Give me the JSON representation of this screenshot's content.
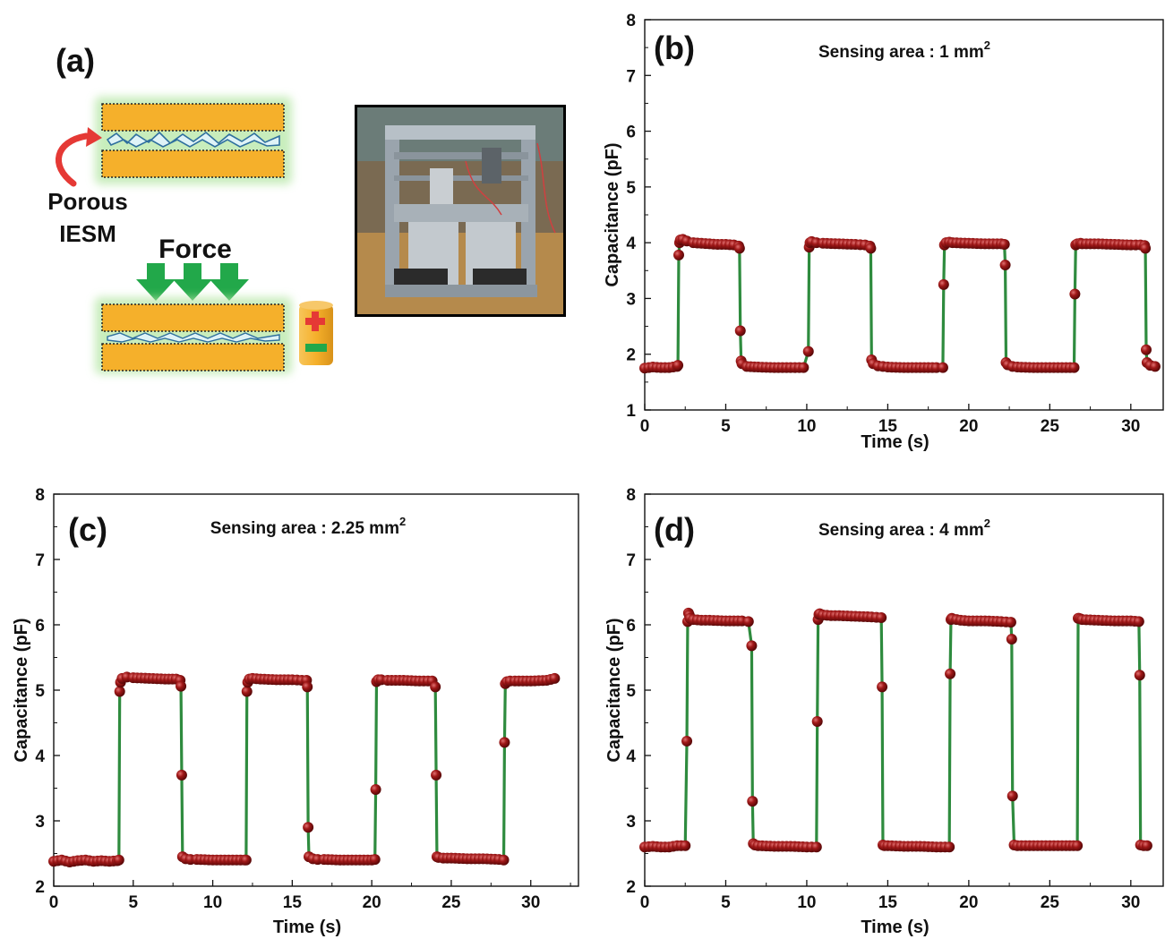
{
  "panel_a": {
    "tag": "(a)",
    "porous_label_line1": "Porous",
    "porous_label_line2": "IESM",
    "force_label": "Force",
    "colors": {
      "electrode": "#f5b02b",
      "arrow_green": "#22a84a",
      "curl_arrow": "#e53935",
      "battery": "#f5b02b",
      "plus": "#e53935",
      "minus": "#22a84a"
    }
  },
  "colors": {
    "marker": "#8b1010",
    "line": "#2e8b3e"
  },
  "chart_data": [
    {
      "type": "line",
      "panel": "(b)",
      "annotation": "Sensing area : 1 mm",
      "annotation_sup": "2",
      "xlabel": "Time (s)",
      "ylabel": "Capacitance (pF)",
      "xlim": [
        0,
        32
      ],
      "ylim": [
        1,
        8
      ],
      "xticks": [
        0,
        5,
        10,
        15,
        20,
        25,
        30
      ],
      "yticks": [
        1,
        2,
        3,
        4,
        5,
        6,
        7,
        8
      ],
      "grid": false,
      "series": [
        {
          "x": [
            0.0,
            0.5,
            1.0,
            1.5,
            2.0,
            2.05,
            2.1,
            2.15,
            2.2,
            2.35,
            2.6,
            3.0,
            3.5,
            4.0,
            4.5,
            5.0,
            5.5,
            5.8,
            5.85,
            5.9,
            5.95,
            6.0,
            6.3,
            7.0,
            8.0,
            9.0,
            9.8,
            10.1,
            10.15,
            10.2,
            10.3,
            10.6,
            11.0,
            12.0,
            13.0,
            13.6,
            13.9,
            13.95,
            14.0,
            14.1,
            14.4,
            15.0,
            16.0,
            17.0,
            18.0,
            18.4,
            18.45,
            18.5,
            18.6,
            18.8,
            19.0,
            20.0,
            21.0,
            22.0,
            22.2,
            22.25,
            22.3,
            22.4,
            22.7,
            23.0,
            24.0,
            25.0,
            26.0,
            26.5,
            26.55,
            26.6,
            26.7,
            26.9,
            27.0,
            28.0,
            29.0,
            30.0,
            30.6,
            30.85,
            30.9,
            30.95,
            31.0,
            31.2,
            31.5
          ],
          "y": [
            1.75,
            1.77,
            1.76,
            1.76,
            1.78,
            1.8,
            3.78,
            4.0,
            4.05,
            4.06,
            4.03,
            4.0,
            3.99,
            3.98,
            3.97,
            3.97,
            3.96,
            3.94,
            3.9,
            2.42,
            1.88,
            1.83,
            1.78,
            1.77,
            1.76,
            1.76,
            1.76,
            2.05,
            3.92,
            4.0,
            4.02,
            4.0,
            3.99,
            3.98,
            3.97,
            3.96,
            3.94,
            3.9,
            1.9,
            1.83,
            1.79,
            1.77,
            1.76,
            1.76,
            1.76,
            1.76,
            3.25,
            3.96,
            4.0,
            4.01,
            4.0,
            3.99,
            3.98,
            3.98,
            3.97,
            3.6,
            1.85,
            1.81,
            1.78,
            1.77,
            1.76,
            1.76,
            1.76,
            1.76,
            3.08,
            3.96,
            3.98,
            3.99,
            3.98,
            3.98,
            3.97,
            3.96,
            3.96,
            3.95,
            3.9,
            2.08,
            1.85,
            1.8,
            1.78
          ]
        }
      ]
    },
    {
      "type": "line",
      "panel": "(c)",
      "annotation": "Sensing area : 2.25 mm",
      "annotation_sup": "2",
      "xlabel": "Time (s)",
      "ylabel": "Capacitance (pF)",
      "xlim": [
        0,
        33
      ],
      "ylim": [
        2,
        8
      ],
      "xticks": [
        0,
        5,
        10,
        15,
        20,
        25,
        30
      ],
      "yticks": [
        2,
        3,
        4,
        5,
        6,
        7,
        8
      ],
      "grid": false,
      "series": [
        {
          "x": [
            0.0,
            0.5,
            1.0,
            1.5,
            2.0,
            2.5,
            3.0,
            3.5,
            4.0,
            4.1,
            4.15,
            4.2,
            4.3,
            4.6,
            5.0,
            6.0,
            7.0,
            7.7,
            7.95,
            8.0,
            8.05,
            8.1,
            8.3,
            8.6,
            9.0,
            10.0,
            11.0,
            12.0,
            12.1,
            12.15,
            12.2,
            12.3,
            12.5,
            13.0,
            14.0,
            15.0,
            15.6,
            15.9,
            15.95,
            16.0,
            16.05,
            16.3,
            16.6,
            17.0,
            18.0,
            19.0,
            20.0,
            20.2,
            20.25,
            20.3,
            20.4,
            20.6,
            21.0,
            22.0,
            23.0,
            23.8,
            24.0,
            24.05,
            24.1,
            24.2,
            24.5,
            25.0,
            26.0,
            27.0,
            28.0,
            28.3,
            28.35,
            28.4,
            28.5,
            28.7,
            29.0,
            30.0,
            31.0,
            31.5
          ],
          "y": [
            2.38,
            2.4,
            2.37,
            2.39,
            2.4,
            2.38,
            2.39,
            2.38,
            2.39,
            2.4,
            4.98,
            5.12,
            5.18,
            5.2,
            5.19,
            5.18,
            5.17,
            5.17,
            5.15,
            5.06,
            3.7,
            2.45,
            2.42,
            2.41,
            2.41,
            2.4,
            2.4,
            2.4,
            2.4,
            4.98,
            5.12,
            5.17,
            5.18,
            5.17,
            5.16,
            5.16,
            5.15,
            5.15,
            5.05,
            2.9,
            2.45,
            2.42,
            2.41,
            2.41,
            2.4,
            2.4,
            2.4,
            2.41,
            3.48,
            5.13,
            5.16,
            5.16,
            5.15,
            5.15,
            5.14,
            5.14,
            5.05,
            3.7,
            2.45,
            2.44,
            2.43,
            2.43,
            2.42,
            2.42,
            2.41,
            2.4,
            4.2,
            5.1,
            5.13,
            5.14,
            5.14,
            5.14,
            5.15,
            5.18
          ]
        }
      ]
    },
    {
      "type": "line",
      "panel": "(d)",
      "annotation": "Sensing area : 4 mm",
      "annotation_sup": "2",
      "xlabel": "Time (s)",
      "ylabel": "Capacitance (pF)",
      "xlim": [
        0,
        32
      ],
      "ylim": [
        2,
        8
      ],
      "xticks": [
        0,
        5,
        10,
        15,
        20,
        25,
        30
      ],
      "yticks": [
        2,
        3,
        4,
        5,
        6,
        7,
        8
      ],
      "grid": false,
      "series": [
        {
          "x": [
            0.0,
            0.5,
            1.0,
            1.5,
            2.0,
            2.5,
            2.6,
            2.65,
            2.7,
            2.75,
            2.8,
            3.0,
            3.5,
            4.0,
            5.0,
            6.0,
            6.4,
            6.6,
            6.65,
            6.7,
            6.8,
            7.0,
            8.0,
            9.0,
            10.0,
            10.6,
            10.65,
            10.7,
            10.75,
            10.8,
            11.0,
            11.5,
            12.0,
            13.0,
            14.0,
            14.6,
            14.65,
            14.7,
            14.8,
            15.0,
            16.0,
            17.0,
            18.0,
            18.8,
            18.85,
            18.9,
            18.95,
            19.0,
            19.5,
            20.0,
            21.0,
            22.0,
            22.6,
            22.65,
            22.7,
            22.8,
            23.0,
            24.0,
            25.0,
            26.0,
            26.7,
            26.75,
            26.8,
            26.9,
            27.0,
            28.0,
            29.0,
            30.0,
            30.5,
            30.55,
            30.6,
            30.8,
            31.0
          ],
          "y": [
            2.6,
            2.61,
            2.6,
            2.6,
            2.62,
            2.62,
            4.22,
            6.05,
            6.18,
            6.15,
            6.1,
            6.08,
            6.07,
            6.07,
            6.06,
            6.06,
            6.05,
            5.68,
            3.3,
            2.65,
            2.63,
            2.62,
            2.61,
            2.61,
            2.6,
            2.6,
            4.52,
            6.08,
            6.16,
            6.17,
            6.15,
            6.14,
            6.14,
            6.13,
            6.12,
            6.11,
            5.05,
            2.63,
            2.62,
            2.62,
            2.61,
            2.61,
            2.6,
            2.6,
            5.25,
            6.08,
            6.1,
            6.09,
            6.07,
            6.06,
            6.06,
            6.05,
            6.04,
            5.78,
            3.38,
            2.63,
            2.62,
            2.62,
            2.62,
            2.62,
            2.62,
            6.1,
            6.1,
            6.09,
            6.08,
            6.07,
            6.06,
            6.06,
            6.05,
            5.23,
            2.63,
            2.62,
            2.62
          ]
        }
      ]
    }
  ]
}
